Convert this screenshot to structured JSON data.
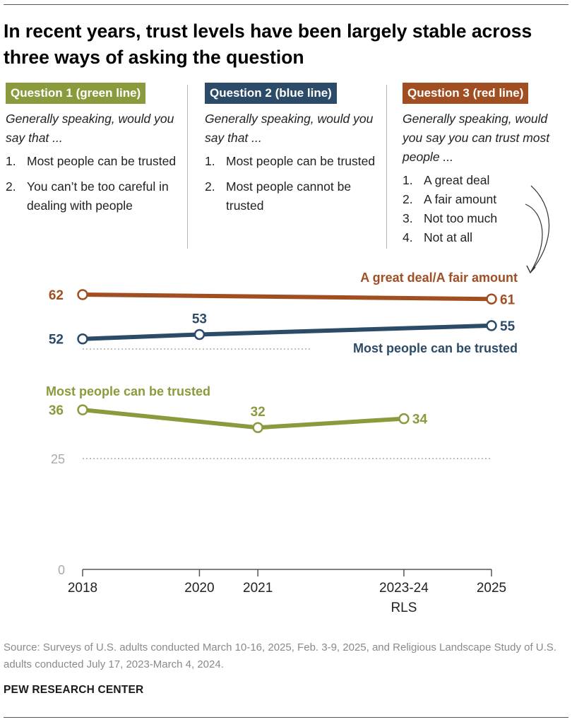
{
  "title": "In recent years, trust levels have been largely stable across three ways of asking the question",
  "colors": {
    "green": "#8a9b3e",
    "blue": "#2b4b68",
    "red": "#a24e23",
    "axis": "#555555",
    "grid": "#aaaaaa"
  },
  "questions": [
    {
      "header": "Question 1 (green line)",
      "prompt": "Generally speaking, would you say that ...",
      "options": [
        {
          "num": "1.",
          "text": "Most people can be trusted"
        },
        {
          "num": "2.",
          "text": "You can’t be too careful in dealing with people"
        }
      ]
    },
    {
      "header": "Question 2 (blue line)",
      "prompt": "Generally speaking, would you say that ...",
      "options": [
        {
          "num": "1.",
          "text": "Most people can be trusted"
        },
        {
          "num": "2.",
          "text": "Most people cannot be trusted"
        }
      ]
    },
    {
      "header": "Question 3 (red line)",
      "prompt": "Generally speaking, would you say you can trust most people ...",
      "options": [
        {
          "num": "1.",
          "text": "A great deal"
        },
        {
          "num": "2.",
          "text": "A fair amount"
        },
        {
          "num": "3.",
          "text": "Not too much"
        },
        {
          "num": "4.",
          "text": "Not at all"
        }
      ]
    }
  ],
  "chart_data": {
    "type": "line",
    "x": [
      2018,
      2020,
      2021,
      2023.5,
      2025
    ],
    "x_tick_labels": [
      {
        "x": 2018,
        "label": "2018"
      },
      {
        "x": 2020,
        "label": "2020"
      },
      {
        "x": 2021,
        "label": "2021"
      },
      {
        "x": 2023.5,
        "label": "2023-24",
        "sublabel": "RLS"
      },
      {
        "x": 2025,
        "label": "2025"
      }
    ],
    "xlim": [
      2018,
      2025
    ],
    "ylim": [
      0,
      62
    ],
    "y_ticks": [
      0,
      25
    ],
    "series": [
      {
        "name": "A great deal/A fair amount",
        "color_key": "red",
        "points": [
          {
            "x": 2018,
            "y": 62,
            "label": "62"
          },
          {
            "x": 2025,
            "y": 61,
            "label": "61"
          }
        ]
      },
      {
        "name": "Most people can be trusted",
        "color_key": "blue",
        "points": [
          {
            "x": 2018,
            "y": 52,
            "label": "52"
          },
          {
            "x": 2020,
            "y": 53,
            "label": "53"
          },
          {
            "x": 2025,
            "y": 55,
            "label": "55"
          }
        ]
      },
      {
        "name": "Most people can be trusted",
        "color_key": "green",
        "points": [
          {
            "x": 2018,
            "y": 36,
            "label": "36"
          },
          {
            "x": 2021,
            "y": 32,
            "label": "32"
          },
          {
            "x": 2023.5,
            "y": 34,
            "label": "34"
          }
        ]
      }
    ]
  },
  "source": "Source: Surveys of U.S. adults conducted March 10-16, 2025, Feb. 3-9, 2025, and Religious Landscape Study of U.S. adults conducted July 17, 2023-March 4, 2024.",
  "brand": "PEW RESEARCH CENTER"
}
